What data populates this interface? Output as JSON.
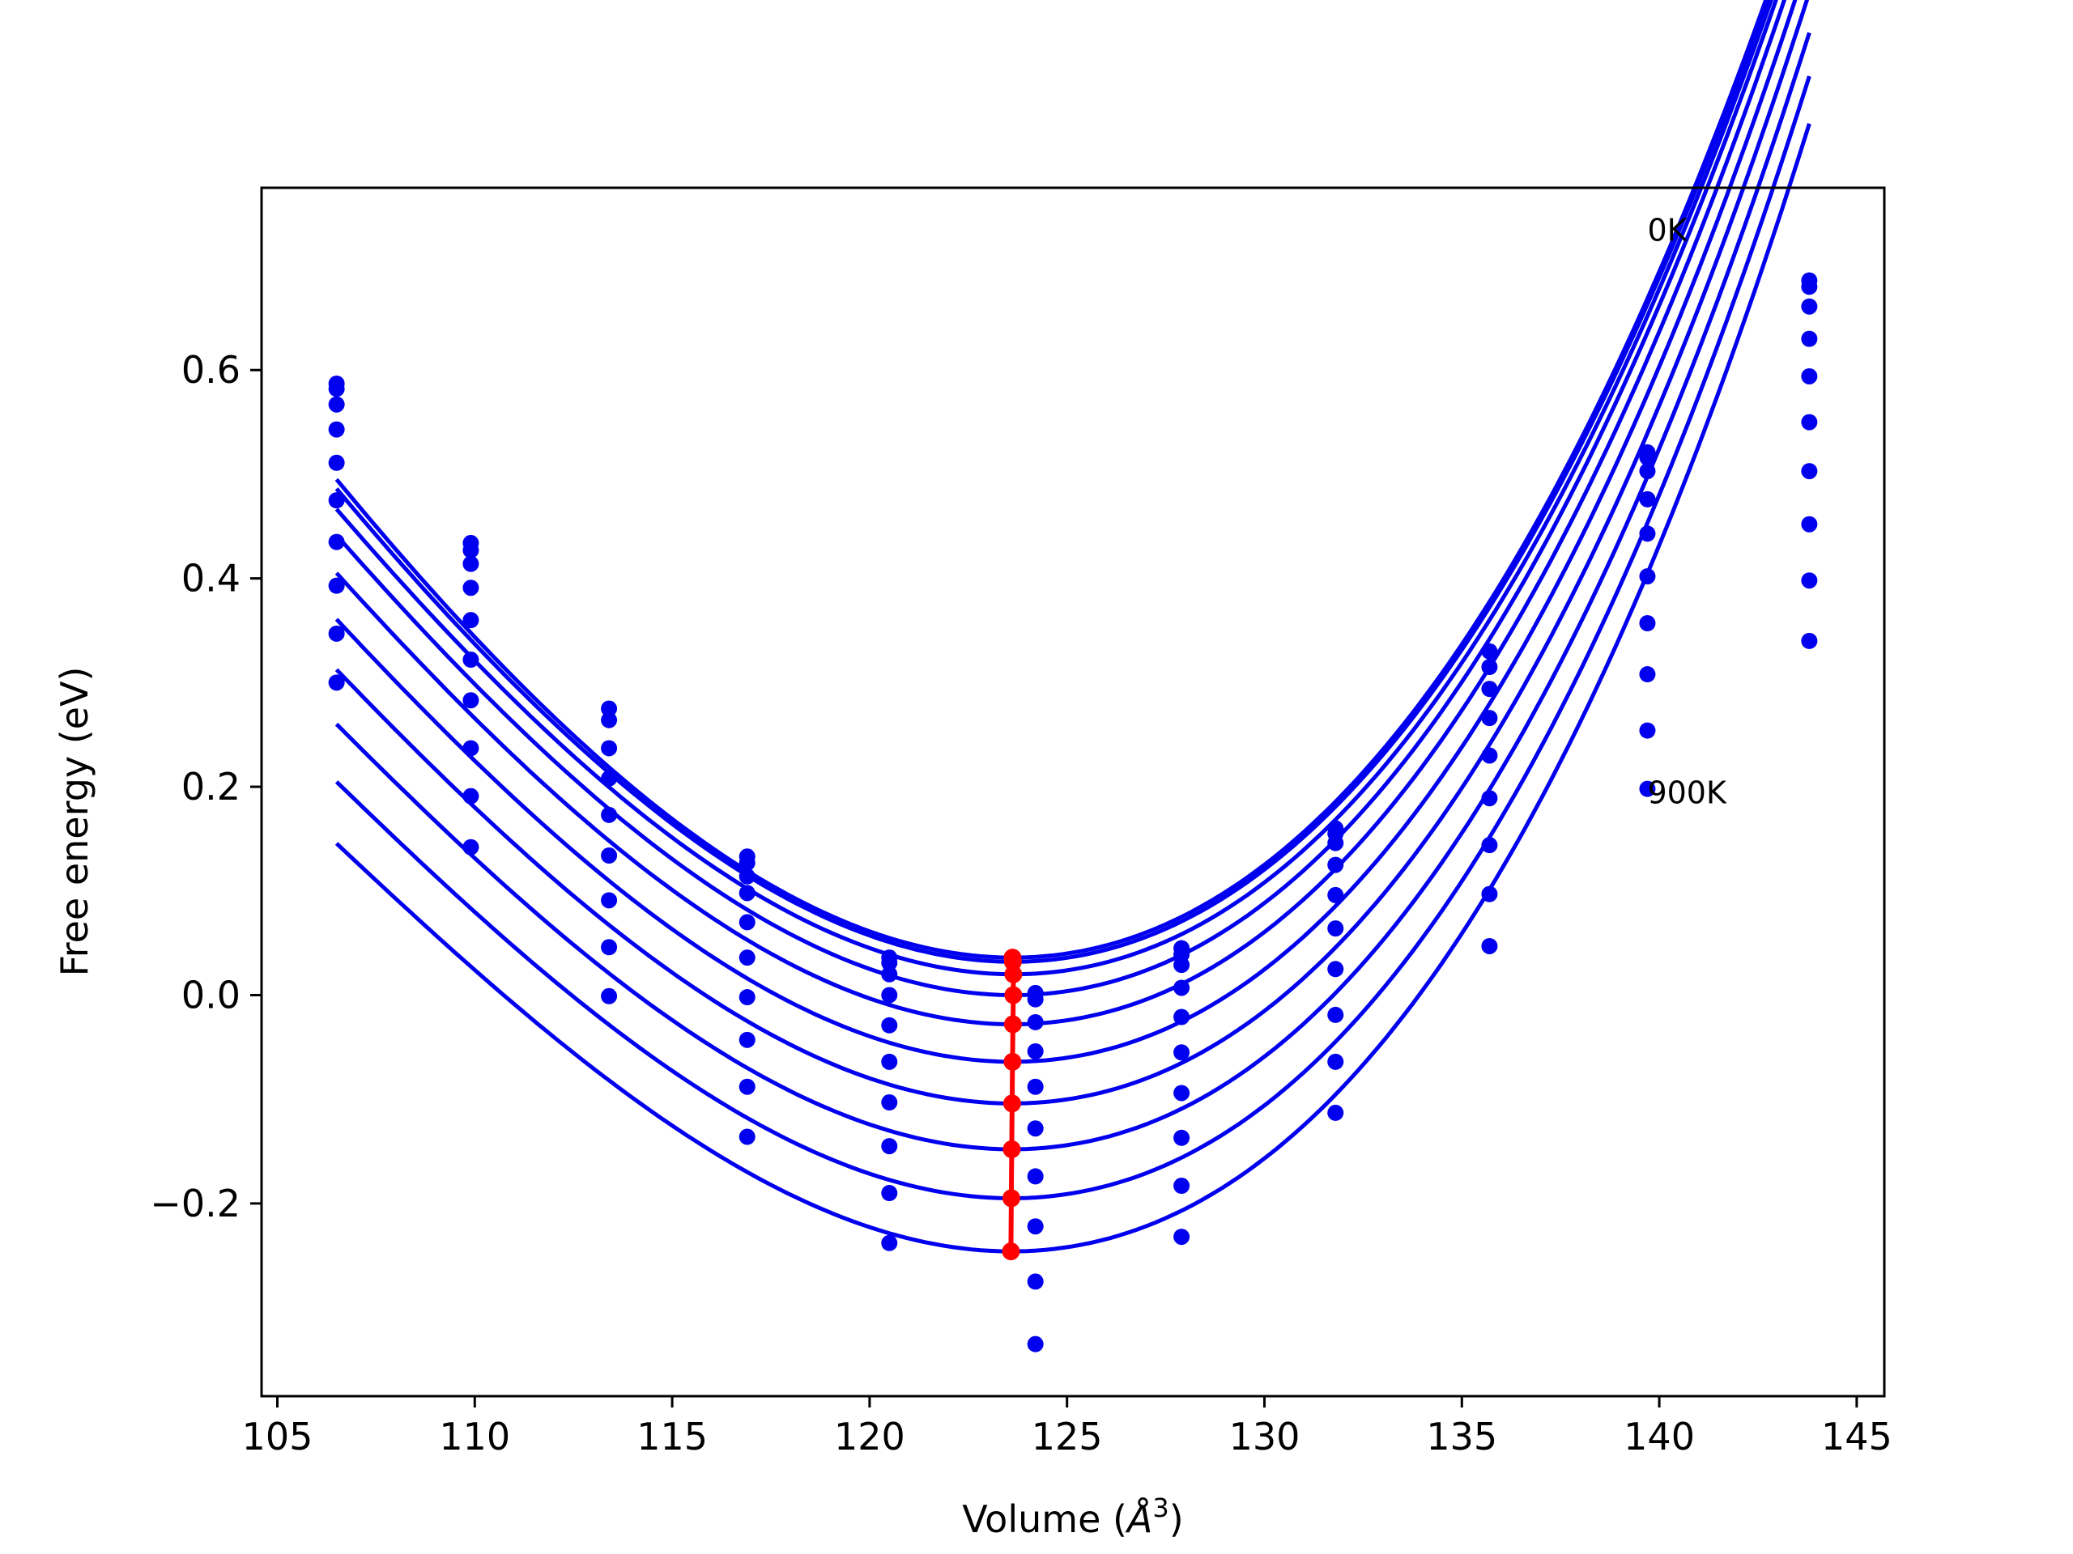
{
  "chart_data": {
    "type": "scatter",
    "title": "",
    "xlabel": "Volume (",
    "xlabel_symbol": "Å",
    "xlabel_exp": "3",
    "xlabel_close": ")",
    "ylabel": "Free energy (eV)",
    "xlim": [
      104.6,
      145.7
    ],
    "ylim": [
      -0.385,
      0.775
    ],
    "xticks": [
      105,
      110,
      115,
      120,
      125,
      130,
      135,
      140,
      145
    ],
    "xtick_labels": [
      "105",
      "110",
      "115",
      "120",
      "125",
      "130",
      "135",
      "140",
      "145"
    ],
    "yticks": [
      -0.2,
      0.0,
      0.2,
      0.4,
      0.6
    ],
    "ytick_labels": [
      "−0.2",
      "0.0",
      "0.2",
      "0.4",
      "0.6"
    ],
    "grid": false,
    "legend": "none",
    "colors": {
      "fit": "#0000ee",
      "points": "#0000ee",
      "minimum": "#ff0000",
      "frame": "#000000"
    },
    "annotations": [
      {
        "text": "0K",
        "x": 139.7,
        "y": 0.735
      },
      {
        "text": "900K",
        "x": 139.7,
        "y": 0.195
      }
    ],
    "volumes": [
      106.5,
      109.9,
      113.4,
      116.9,
      120.5,
      124.2,
      127.9,
      131.8,
      135.7,
      139.7,
      143.8
    ],
    "series": [
      {
        "curve": {
          "vmin": 123.62,
          "fmin": 0.036,
          "c2": 0.00202,
          "c3": 2.65e-05
        },
        "points": [
          0.587,
          0.434,
          0.275,
          0.133,
          0.036,
          0.002,
          0.045,
          0.16,
          0.33,
          0.521,
          0.686
        ]
      },
      {
        "curve": {
          "vmin": 123.63,
          "fmin": 0.032,
          "c2": 0.00201,
          "c3": 2.7e-05
        },
        "points": [
          0.582,
          0.427,
          0.264,
          0.127,
          0.031,
          -0.004,
          0.039,
          0.155,
          0.315,
          0.516,
          0.68
        ]
      },
      {
        "curve": {
          "vmin": 123.64,
          "fmin": 0.02,
          "c2": 0.002,
          "c3": 2.8e-05
        },
        "points": [
          0.567,
          0.414,
          0.237,
          0.114,
          0.02,
          -0.026,
          0.029,
          0.146,
          0.294,
          0.503,
          0.661
        ]
      },
      {
        "curve": {
          "vmin": 123.64,
          "fmin": 0.0,
          "c2": 0.002,
          "c3": 2.9e-05
        },
        "points": [
          0.543,
          0.391,
          0.208,
          0.098,
          0.0,
          -0.054,
          0.007,
          0.125,
          0.266,
          0.476,
          0.63
        ]
      },
      {
        "curve": {
          "vmin": 123.63,
          "fmin": -0.028,
          "c2": 0.00199,
          "c3": 3e-05
        },
        "points": [
          0.511,
          0.36,
          0.173,
          0.07,
          -0.029,
          -0.088,
          -0.021,
          0.096,
          0.23,
          0.443,
          0.594
        ]
      },
      {
        "curve": {
          "vmin": 123.62,
          "fmin": -0.064,
          "c2": 0.00198,
          "c3": 3.1e-05
        },
        "points": [
          0.475,
          0.322,
          0.134,
          0.036,
          -0.064,
          -0.128,
          -0.055,
          0.064,
          0.189,
          0.402,
          0.55
        ]
      },
      {
        "curve": {
          "vmin": 123.61,
          "fmin": -0.104,
          "c2": 0.00197,
          "c3": 3.2e-05
        },
        "points": [
          0.435,
          0.283,
          0.091,
          -0.002,
          -0.103,
          -0.174,
          -0.094,
          0.025,
          0.144,
          0.357,
          0.503
        ]
      },
      {
        "curve": {
          "vmin": 123.6,
          "fmin": -0.148,
          "c2": 0.00196,
          "c3": 3.3e-05
        },
        "points": [
          0.393,
          0.237,
          0.046,
          -0.043,
          -0.145,
          -0.222,
          -0.137,
          -0.019,
          0.097,
          0.308,
          0.452
        ]
      },
      {
        "curve": {
          "vmin": 123.59,
          "fmin": -0.195,
          "c2": 0.00195,
          "c3": 3.4e-05
        },
        "points": [
          0.347,
          0.191,
          -0.001,
          -0.088,
          -0.19,
          -0.275,
          -0.183,
          -0.064,
          0.047,
          0.254,
          0.398
        ]
      },
      {
        "curve": {
          "vmin": 123.58,
          "fmin": -0.246,
          "c2": 0.00194,
          "c3": 3.5e-05
        },
        "points": [
          0.3,
          0.142,
          null,
          -0.136,
          -0.238,
          -0.335,
          -0.232,
          -0.113,
          null,
          0.198,
          0.34
        ]
      }
    ],
    "minimum_line": {
      "x": [
        123.62,
        123.63,
        123.64,
        123.64,
        123.63,
        123.62,
        123.61,
        123.6,
        123.59,
        123.58
      ],
      "y": [
        0.036,
        0.032,
        0.02,
        0.0,
        -0.028,
        -0.064,
        -0.104,
        -0.148,
        -0.195,
        -0.246
      ]
    }
  }
}
